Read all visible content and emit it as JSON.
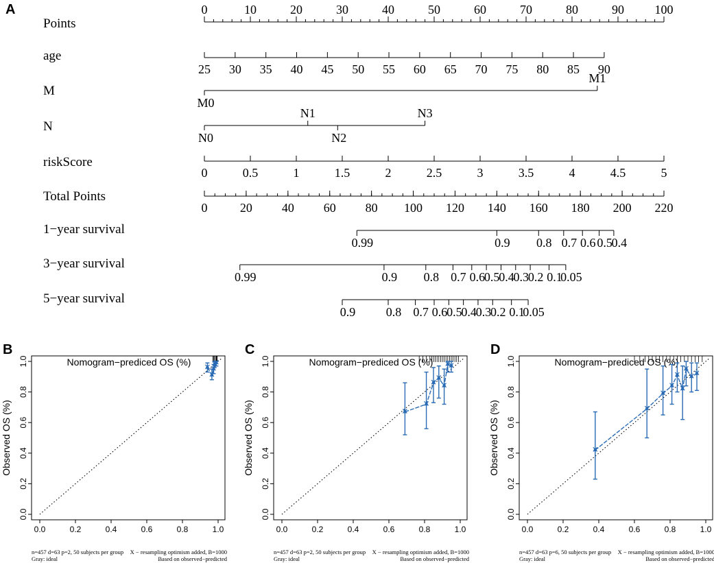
{
  "chart_data": [
    {
      "type": "nomogram",
      "panel": "A",
      "points_range": [
        0,
        100
      ],
      "rows": [
        {
          "label": "Points",
          "kind": "scale",
          "domain": [
            0,
            100
          ],
          "major": [
            0,
            10,
            20,
            30,
            40,
            50,
            60,
            70,
            80,
            90,
            100
          ],
          "minor_step": 2,
          "labels_above": true
        },
        {
          "label": "age",
          "kind": "scale",
          "domain": [
            25,
            90
          ],
          "points_at_domain": [
            0,
            87
          ],
          "major": [
            25,
            30,
            35,
            40,
            45,
            50,
            55,
            60,
            65,
            70,
            75,
            80,
            85,
            90
          ]
        },
        {
          "label": "M",
          "kind": "categorical",
          "levels": [
            {
              "name": "M0",
              "points": 0,
              "pos": "below"
            },
            {
              "name": "M1",
              "points": 85.5,
              "pos": "above"
            }
          ]
        },
        {
          "label": "N",
          "kind": "categorical",
          "levels": [
            {
              "name": "N0",
              "points": 0,
              "pos": "below"
            },
            {
              "name": "N1",
              "points": 22.5,
              "pos": "above"
            },
            {
              "name": "N2",
              "points": 29,
              "pos": "below"
            },
            {
              "name": "N3",
              "points": 48,
              "pos": "above"
            }
          ]
        },
        {
          "label": "riskScore",
          "kind": "scale",
          "domain": [
            0,
            5
          ],
          "points_at_domain": [
            0,
            100
          ],
          "major": [
            0,
            0.5,
            1,
            1.5,
            2,
            2.5,
            3,
            3.5,
            4,
            4.5,
            5
          ]
        },
        {
          "label": "Total Points",
          "kind": "scale",
          "domain": [
            0,
            220
          ],
          "points_at_domain": [
            0,
            100
          ],
          "major": [
            0,
            20,
            40,
            60,
            80,
            100,
            120,
            140,
            160,
            180,
            200,
            220
          ],
          "minor_step": 5
        },
        {
          "label": "1−year survival",
          "kind": "prob",
          "ticks": [
            {
              "label": "0.99",
              "total": 73
            },
            {
              "label": "0.9",
              "total": 140
            },
            {
              "label": "0.8",
              "total": 160
            },
            {
              "label": "0.7",
              "total": 172
            },
            {
              "label": "0.6",
              "total": 181
            },
            {
              "label": "0.5",
              "total": 189
            },
            {
              "label": "0.4",
              "total": 196
            }
          ]
        },
        {
          "label": "3−year survival",
          "kind": "prob",
          "ticks": [
            {
              "label": "0.99",
              "total": 17
            },
            {
              "label": "0.9",
              "total": 86
            },
            {
              "label": "0.8",
              "total": 106
            },
            {
              "label": "0.7",
              "total": 119
            },
            {
              "label": "0.6",
              "total": 128
            },
            {
              "label": "0.5",
              "total": 135
            },
            {
              "label": "0.4",
              "total": 142
            },
            {
              "label": "0.3",
              "total": 149
            },
            {
              "label": "0.2",
              "total": 156
            },
            {
              "label": "0.1",
              "total": 165
            },
            {
              "label": "0.05",
              "total": 173
            }
          ]
        },
        {
          "label": "5−year survival",
          "kind": "prob",
          "ticks": [
            {
              "label": "0.9",
              "total": 66
            },
            {
              "label": "0.8",
              "total": 88
            },
            {
              "label": "0.7",
              "total": 101
            },
            {
              "label": "0.6",
              "total": 110
            },
            {
              "label": "0.5",
              "total": 117
            },
            {
              "label": "0.4",
              "total": 124
            },
            {
              "label": "0.3",
              "total": 131
            },
            {
              "label": "0.2",
              "total": 138
            },
            {
              "label": "0.1",
              "total": 147
            },
            {
              "label": "0.05",
              "total": 155
            }
          ]
        }
      ]
    },
    {
      "type": "calibration",
      "panel": "B",
      "xlabel": "Nomogram−prediced OS (%)",
      "ylabel": "Observed OS (%)",
      "xlim": [
        0,
        1
      ],
      "ylim": [
        0,
        1
      ],
      "xticks": [
        "0.0",
        "0.2",
        "0.4",
        "0.6",
        "0.8",
        "1.0"
      ],
      "yticks": [
        "0.0",
        "0.2",
        "0.4",
        "0.6",
        "0.8",
        "1.0"
      ],
      "points": [
        {
          "x": 0.94,
          "y": 0.96,
          "lo": 0.93,
          "hi": 0.99
        },
        {
          "x": 0.965,
          "y": 0.91,
          "lo": 0.88,
          "hi": 0.95
        },
        {
          "x": 0.975,
          "y": 0.95,
          "lo": 0.92,
          "hi": 0.98
        },
        {
          "x": 0.98,
          "y": 0.98,
          "lo": 0.96,
          "hi": 1.0
        },
        {
          "x": 0.99,
          "y": 0.99,
          "lo": 0.97,
          "hi": 1.0
        }
      ],
      "rug_x": [
        0.97,
        0.975,
        0.98,
        0.985,
        0.99,
        0.992,
        0.995
      ],
      "note_left": [
        "n=457 d=63 p=2, 50 subjects per group",
        "Gray: ideal"
      ],
      "note_right": [
        "X − resampling optimism added, B=1000",
        "Based on observed−predicted"
      ]
    },
    {
      "type": "calibration",
      "panel": "C",
      "xlabel": "Nomogram−prediced OS (%)",
      "ylabel": "Observed OS (%)",
      "xlim": [
        0,
        1
      ],
      "ylim": [
        0,
        1
      ],
      "xticks": [
        "0.0",
        "0.2",
        "0.4",
        "0.6",
        "0.8",
        "1.0"
      ],
      "yticks": [
        "0.0",
        "0.2",
        "0.4",
        "0.6",
        "0.8",
        "1.0"
      ],
      "points": [
        {
          "x": 0.69,
          "y": 0.67,
          "lo": 0.52,
          "hi": 0.86
        },
        {
          "x": 0.81,
          "y": 0.72,
          "lo": 0.56,
          "hi": 0.93
        },
        {
          "x": 0.85,
          "y": 0.86,
          "lo": 0.73,
          "hi": 0.96
        },
        {
          "x": 0.88,
          "y": 0.89,
          "lo": 0.76,
          "hi": 0.97
        },
        {
          "x": 0.91,
          "y": 0.84,
          "lo": 0.72,
          "hi": 0.95
        },
        {
          "x": 0.93,
          "y": 0.98,
          "lo": 0.93,
          "hi": 1.0
        },
        {
          "x": 0.95,
          "y": 0.97,
          "lo": 0.93,
          "hi": 1.0
        }
      ],
      "rug_x": [
        0.77,
        0.79,
        0.81,
        0.83,
        0.84,
        0.85,
        0.86,
        0.87,
        0.88,
        0.89,
        0.9,
        0.91,
        0.92,
        0.93,
        0.94,
        0.95,
        0.96,
        0.97,
        0.98,
        0.99
      ],
      "note_left": [
        "n=457 d=63 p=2, 50 subjects per group",
        "Gray: ideal"
      ],
      "note_right": [
        "X − resampling optimism added, B=1000",
        "Based on observed−predicted"
      ]
    },
    {
      "type": "calibration",
      "panel": "D",
      "xlabel": "Nomogram−prediced OS (%)",
      "ylabel": "Observed OS (%)",
      "xlim": [
        0,
        1
      ],
      "ylim": [
        0,
        1
      ],
      "xticks": [
        "0.0",
        "0.2",
        "0.4",
        "0.6",
        "0.8",
        "1.0"
      ],
      "yticks": [
        "0.0",
        "0.2",
        "0.4",
        "0.6",
        "0.8",
        "1.0"
      ],
      "points": [
        {
          "x": 0.38,
          "y": 0.42,
          "lo": 0.23,
          "hi": 0.67
        },
        {
          "x": 0.67,
          "y": 0.69,
          "lo": 0.5,
          "hi": 0.95
        },
        {
          "x": 0.76,
          "y": 0.79,
          "lo": 0.65,
          "hi": 0.97
        },
        {
          "x": 0.81,
          "y": 0.84,
          "lo": 0.72,
          "hi": 0.98
        },
        {
          "x": 0.84,
          "y": 0.91,
          "lo": 0.8,
          "hi": 0.99
        },
        {
          "x": 0.87,
          "y": 0.82,
          "lo": 0.62,
          "hi": 0.97
        },
        {
          "x": 0.89,
          "y": 0.95,
          "lo": 0.84,
          "hi": 1.0
        },
        {
          "x": 0.92,
          "y": 0.9,
          "lo": 0.8,
          "hi": 0.99
        },
        {
          "x": 0.95,
          "y": 0.92,
          "lo": 0.81,
          "hi": 0.99
        }
      ],
      "rug_x": [
        0.6,
        0.63,
        0.66,
        0.68,
        0.7,
        0.72,
        0.74,
        0.76,
        0.78,
        0.8,
        0.82,
        0.84,
        0.86,
        0.88,
        0.9,
        0.92,
        0.94,
        0.96,
        0.98
      ],
      "note_left": [
        "n=457 d=63 p=6, 50 subjects per group",
        "Gray: ideal"
      ],
      "note_right": [
        "X − resampling optimism added, B=1000",
        "Based on observed−predicted"
      ]
    }
  ],
  "colors": {
    "series": "#2a6bb5",
    "ink": "#000000"
  }
}
